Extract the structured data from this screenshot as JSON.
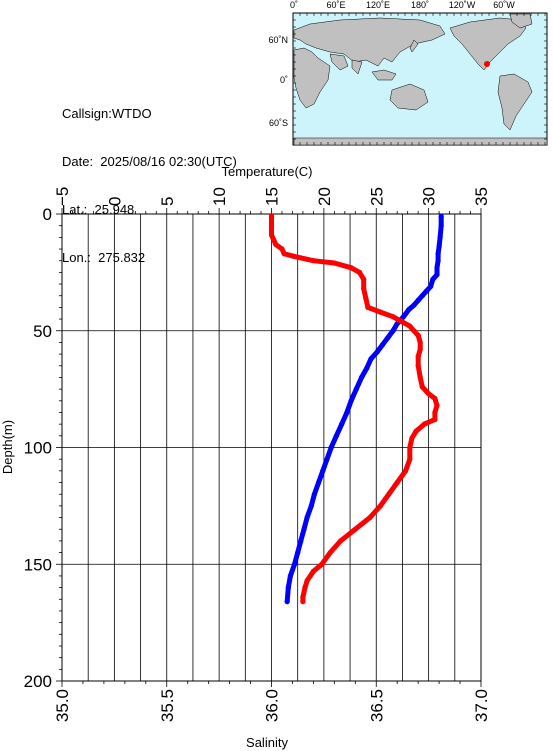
{
  "meta": {
    "callsign": "Callsign:WTDO",
    "date": "Date:  2025/08/16 02:30(UTC)",
    "lat": "Lat.:  25.948",
    "lon": "Lon.:  275.832"
  },
  "map": {
    "top_ticks": [
      "0˚",
      "60˚E",
      "120˚E",
      "180˚",
      "120˚W",
      "60˚W"
    ],
    "left_ticks": [
      "60˚N",
      "0˚",
      "60˚S"
    ],
    "ocean_color": "#cdf4fb",
    "land_color": "#c0c0c0",
    "marker_color": "#ff0000"
  },
  "chart_data": {
    "type": "line",
    "ylabel": "Depth(m)",
    "ylim": [
      0,
      200
    ],
    "yticks": [
      "0",
      "50",
      "100",
      "150",
      "200"
    ],
    "y_inverted": true,
    "grid": true,
    "temperature_axis": {
      "label": "Temperature(C)",
      "position": "top",
      "range": [
        -5,
        35
      ],
      "ticks": [
        "−5",
        "0",
        "5",
        "10",
        "15",
        "20",
        "25",
        "30",
        "35"
      ]
    },
    "salinity_axis": {
      "label": "Salinity",
      "position": "bottom",
      "range": [
        35.0,
        37.0
      ],
      "ticks": [
        "35.0",
        "35.5",
        "36.0",
        "36.5",
        "37.0"
      ]
    },
    "series": [
      {
        "axis": "temperature",
        "color": "#0000ff",
        "points": [
          [
            31.2,
            1
          ],
          [
            31.2,
            5
          ],
          [
            31.1,
            10
          ],
          [
            31.0,
            14
          ],
          [
            30.9,
            17
          ],
          [
            30.9,
            20
          ],
          [
            30.8,
            23
          ],
          [
            30.8,
            26
          ],
          [
            30.4,
            28
          ],
          [
            30.2,
            31
          ],
          [
            29.8,
            33
          ],
          [
            29.4,
            35
          ],
          [
            29.0,
            37
          ],
          [
            28.6,
            39
          ],
          [
            28.1,
            41
          ],
          [
            27.6,
            44
          ],
          [
            27.0,
            47
          ],
          [
            26.6,
            50
          ],
          [
            26.1,
            53
          ],
          [
            25.6,
            56
          ],
          [
            25.1,
            59
          ],
          [
            24.5,
            62
          ],
          [
            24.1,
            66
          ],
          [
            23.6,
            70
          ],
          [
            23.1,
            75
          ],
          [
            22.6,
            80
          ],
          [
            22.2,
            85
          ],
          [
            21.7,
            90
          ],
          [
            21.2,
            95
          ],
          [
            20.7,
            100
          ],
          [
            20.3,
            105
          ],
          [
            19.9,
            110
          ],
          [
            19.5,
            115
          ],
          [
            19.1,
            120
          ],
          [
            18.8,
            125
          ],
          [
            18.4,
            130
          ],
          [
            18.1,
            135
          ],
          [
            17.8,
            140
          ],
          [
            17.5,
            145
          ],
          [
            17.2,
            150
          ],
          [
            16.8,
            155
          ],
          [
            16.6,
            160
          ],
          [
            16.5,
            166
          ]
        ]
      },
      {
        "axis": "salinity",
        "color": "#ff0000",
        "points": [
          [
            36.0,
            1
          ],
          [
            36.0,
            5
          ],
          [
            36.0,
            9
          ],
          [
            36.01,
            11
          ],
          [
            36.02,
            13
          ],
          [
            36.05,
            15
          ],
          [
            36.06,
            17
          ],
          [
            36.1,
            18
          ],
          [
            36.2,
            20
          ],
          [
            36.3,
            21
          ],
          [
            36.38,
            23
          ],
          [
            36.42,
            25
          ],
          [
            36.44,
            28
          ],
          [
            36.44,
            32
          ],
          [
            36.45,
            36
          ],
          [
            36.46,
            40
          ],
          [
            36.52,
            42
          ],
          [
            36.58,
            44
          ],
          [
            36.62,
            46
          ],
          [
            36.66,
            48
          ],
          [
            36.68,
            50
          ],
          [
            36.7,
            52
          ],
          [
            36.71,
            55
          ],
          [
            36.71,
            58
          ],
          [
            36.7,
            61
          ],
          [
            36.7,
            65
          ],
          [
            36.71,
            70
          ],
          [
            36.72,
            74
          ],
          [
            36.75,
            77
          ],
          [
            36.78,
            79
          ],
          [
            36.79,
            82
          ],
          [
            36.78,
            85
          ],
          [
            36.78,
            88
          ],
          [
            36.73,
            90
          ],
          [
            36.69,
            93
          ],
          [
            36.67,
            96
          ],
          [
            36.66,
            100
          ],
          [
            36.66,
            105
          ],
          [
            36.64,
            110
          ],
          [
            36.6,
            115
          ],
          [
            36.56,
            120
          ],
          [
            36.52,
            125
          ],
          [
            36.47,
            130
          ],
          [
            36.4,
            135
          ],
          [
            36.33,
            140
          ],
          [
            36.28,
            145
          ],
          [
            36.24,
            150
          ],
          [
            36.2,
            153
          ],
          [
            36.17,
            157
          ],
          [
            36.16,
            160
          ],
          [
            36.15,
            164
          ],
          [
            36.15,
            166
          ]
        ]
      }
    ]
  }
}
